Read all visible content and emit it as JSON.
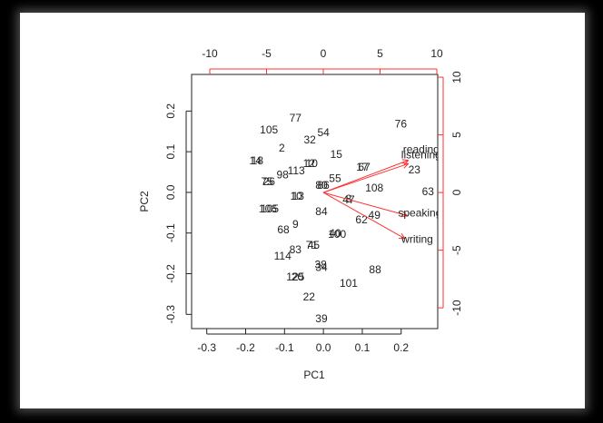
{
  "chart_data": {
    "type": "biplot",
    "x_label": "PC1",
    "y_label": "PC2",
    "xlim": [
      -0.339,
      0.294
    ],
    "ylim": [
      -0.335,
      0.29
    ],
    "xticks": [
      -0.3,
      -0.2,
      -0.1,
      {
        "value": 0,
        "label": "0.0"
      },
      0.1,
      0.2
    ],
    "yticks": [
      0.2,
      0.1,
      {
        "value": 0,
        "label": "0.0"
      },
      -0.1,
      -0.2,
      -0.3
    ],
    "x2lim": [
      -11.6,
      10.08
    ],
    "y2lim": [
      -11.8,
      10.24
    ],
    "x2ticks": [
      -10,
      -5,
      0,
      5,
      10
    ],
    "y2ticks": [
      10,
      5,
      0,
      -5,
      -10
    ],
    "axis2_color": "#ff3030",
    "series": [
      {
        "point_labels": [
          "76",
          "77",
          "54",
          "105",
          "32",
          "2",
          "15",
          "23",
          "113",
          "98",
          "55",
          "108",
          "63",
          "14",
          "18",
          "12",
          "10",
          "17",
          "67",
          "75",
          "26",
          "80",
          "86",
          "10",
          "13",
          "8",
          "47",
          "106",
          "105",
          "84",
          "9",
          "49",
          "62",
          "68",
          "40",
          "100",
          "71",
          "45",
          "83",
          "114",
          "38",
          "34",
          "88",
          "125",
          "20",
          "101",
          "22",
          "39"
        ],
        "color": "#222222",
        "x": [
          0.199,
          -0.072,
          0.0,
          -0.14,
          -0.035,
          -0.107,
          0.033,
          0.234,
          -0.07,
          -0.105,
          0.03,
          0.131,
          0.269,
          -0.175,
          -0.17,
          -0.037,
          -0.03,
          0.1,
          0.105,
          -0.145,
          -0.14,
          -0.005,
          0.0,
          -0.07,
          -0.065,
          0.065,
          0.065,
          -0.143,
          -0.138,
          -0.005,
          -0.072,
          0.131,
          0.098,
          -0.103,
          0.03,
          0.035,
          -0.03,
          -0.025,
          -0.072,
          -0.105,
          -0.007,
          -0.005,
          0.133,
          -0.072,
          -0.067,
          0.065,
          -0.037,
          -0.005
        ],
        "values": [
          0.167,
          0.181,
          0.145,
          0.152,
          0.127,
          0.107,
          0.092,
          0.054,
          0.051,
          0.042,
          0.033,
          0.009,
          0.0,
          0.076,
          0.076,
          0.069,
          0.069,
          0.06,
          0.06,
          0.025,
          0.025,
          0.016,
          0.016,
          -0.011,
          -0.011,
          -0.018,
          -0.02,
          -0.042,
          -0.042,
          -0.049,
          -0.08,
          -0.058,
          -0.069,
          -0.094,
          -0.103,
          -0.105,
          -0.132,
          -0.132,
          -0.143,
          -0.158,
          -0.179,
          -0.186,
          -0.192,
          -0.21,
          -0.21,
          -0.225,
          -0.259,
          -0.312
        ]
      }
    ],
    "loadings": {
      "names": [
        "reading",
        "listening",
        "speaking",
        "writing"
      ],
      "color": "#ff3030",
      "x": [
        7.5,
        7.5,
        7.4,
        7.2
      ],
      "values": [
        2.8,
        2.5,
        -2.0,
        -4.0
      ]
    }
  }
}
